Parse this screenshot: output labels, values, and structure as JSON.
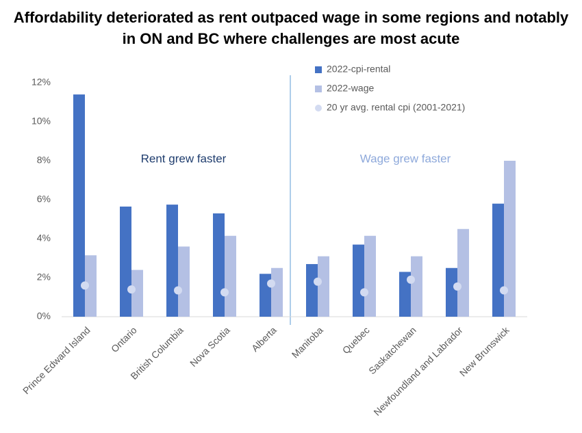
{
  "chart_data": {
    "type": "bar",
    "title": "Affordability deteriorated as rent outpaced wage in some regions and notably in ON and BC where challenges are most acute",
    "categories": [
      "Prince Edward Island",
      "Ontario",
      "British Columbia",
      "Nova Scotia",
      "Alberta",
      "Manitoba",
      "Quebec",
      "Saskatchewan",
      "Newfoundland and Labrador",
      "New Brunswick"
    ],
    "series": [
      {
        "name": "2022-cpi-rental",
        "color": "#4472c4",
        "type": "bar",
        "values": [
          11.4,
          5.65,
          5.75,
          5.3,
          2.2,
          2.7,
          3.7,
          2.3,
          2.5,
          5.8
        ]
      },
      {
        "name": "2022-wage",
        "color": "#b4c0e4",
        "type": "bar",
        "values": [
          3.15,
          2.4,
          3.6,
          4.15,
          2.5,
          3.1,
          4.15,
          3.1,
          4.5,
          8.0
        ]
      },
      {
        "name": "20 yr avg. rental cpi (2001-2021)",
        "color": "#d3dbf1",
        "type": "scatter",
        "values": [
          1.6,
          1.4,
          1.35,
          1.25,
          1.7,
          1.8,
          1.25,
          1.9,
          1.55,
          1.35
        ]
      }
    ],
    "annotations": [
      {
        "text": "Rent grew faster",
        "color": "#1f3d6e"
      },
      {
        "text": "Wage grew faster",
        "color": "#8ea9db"
      }
    ],
    "ylim": [
      0,
      12
    ],
    "yticks": [
      {
        "value": 0,
        "label": "0%"
      },
      {
        "value": 2,
        "label": "2%"
      },
      {
        "value": 4,
        "label": "4%"
      },
      {
        "value": 6,
        "label": "6%"
      },
      {
        "value": 8,
        "label": "8%"
      },
      {
        "value": 10,
        "label": "10%"
      },
      {
        "value": 12,
        "label": "12%"
      }
    ],
    "grid": false,
    "legend": "top-right"
  }
}
